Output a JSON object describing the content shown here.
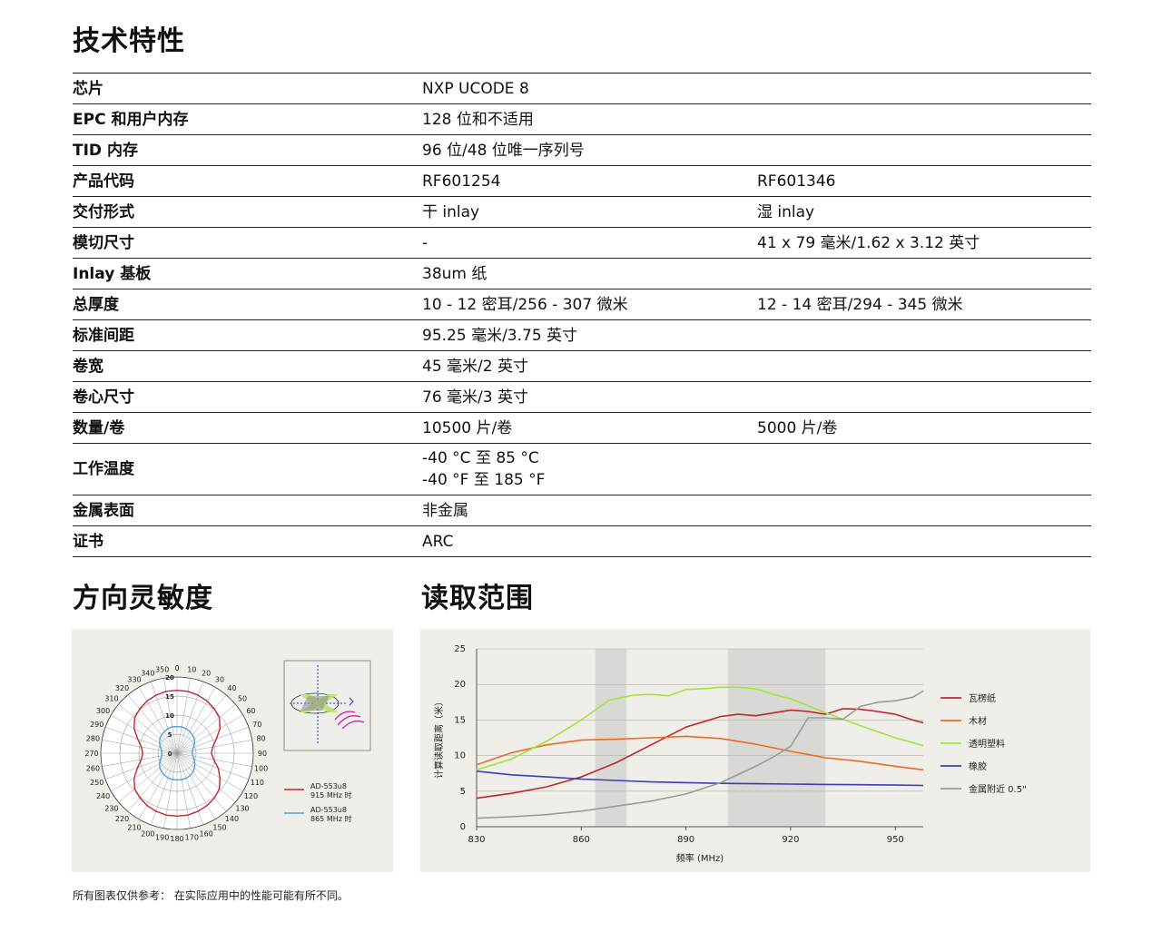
{
  "spec": {
    "title": "技术特性",
    "rows": [
      {
        "label": "芯片",
        "v1": "NXP UCODE 8",
        "v2": ""
      },
      {
        "label": "EPC 和用户内存",
        "v1": "128 位和不适用",
        "v2": ""
      },
      {
        "label": "TID 内存",
        "v1": "96 位/48 位唯一序列号",
        "v2": ""
      },
      {
        "label": "产品代码",
        "v1": "RF601254",
        "v2": "RF601346"
      },
      {
        "label": "交付形式",
        "v1": "干 inlay",
        "v2": "湿 inlay"
      },
      {
        "label": "模切尺寸",
        "v1": "-",
        "v2": "41 x 79 毫米/1.62 x 3.12 英寸"
      },
      {
        "label": "Inlay 基板",
        "v1": "38um 纸",
        "v2": ""
      },
      {
        "label": "总厚度",
        "v1": "10 - 12 密耳/256 - 307 微米",
        "v2": "12 - 14 密耳/294 - 345 微米"
      },
      {
        "label": "标准间距",
        "v1": "95.25 毫米/3.75 英寸",
        "v2": ""
      },
      {
        "label": "卷宽",
        "v1": "45 毫米/2 英寸",
        "v2": ""
      },
      {
        "label": "卷心尺寸",
        "v1": "76 毫米/3 英寸",
        "v2": ""
      },
      {
        "label": "数量/卷",
        "v1": "10500 片/卷",
        "v2": "5000 片/卷"
      },
      {
        "label": "工作温度",
        "v1": "-40 °C 至 85 °C\n-40 °F 至 185 °F",
        "v2": ""
      },
      {
        "label": "金属表面",
        "v1": "非金属",
        "v2": ""
      },
      {
        "label": "证书",
        "v1": "ARC",
        "v2": ""
      }
    ]
  },
  "polar": {
    "title": "方向灵敏度"
  },
  "range": {
    "title": "读取范围"
  },
  "footnote": "所有图表仅供参考： 在实际应用中的性能可能有所不同。",
  "chart_data": [
    {
      "type": "polar",
      "angle_labels": [
        "0",
        "10",
        "20",
        "30",
        "40",
        "50",
        "60",
        "70",
        "80",
        "90",
        "100",
        "110",
        "120",
        "130",
        "140",
        "150",
        "160",
        "170",
        "180",
        "190",
        "200",
        "210",
        "220",
        "230",
        "240",
        "250",
        "260",
        "270",
        "280",
        "290",
        "300",
        "310",
        "320",
        "330",
        "340",
        "350"
      ],
      "radial_ticks": [
        0,
        5,
        10,
        15,
        20
      ],
      "rlim": [
        0,
        20
      ],
      "series": [
        {
          "name": "AD-553u8\n915 MHz 时",
          "color": "#c0272d",
          "angles": [
            0,
            10,
            20,
            30,
            40,
            50,
            60,
            70,
            80,
            90,
            100,
            110,
            120,
            130,
            140,
            150,
            160,
            170,
            180,
            190,
            200,
            210,
            220,
            230,
            240,
            250,
            260,
            270,
            280,
            290,
            300,
            310,
            320,
            330,
            340,
            350
          ],
          "values": [
            16.5,
            16.5,
            16.2,
            15.8,
            15.2,
            14.5,
            13.0,
            11.0,
            9.5,
            9.0,
            9.8,
            11.5,
            13.0,
            14.5,
            15.3,
            15.8,
            16.2,
            16.5,
            16.5,
            16.5,
            16.2,
            15.8,
            15.2,
            14.5,
            13.0,
            11.0,
            9.5,
            9.0,
            9.5,
            11.0,
            13.0,
            14.5,
            15.2,
            15.8,
            16.2,
            16.5
          ]
        },
        {
          "name": "AD-553u8\n865 MHz 时",
          "color": "#4aa3e0",
          "angles": [
            0,
            10,
            20,
            30,
            40,
            50,
            60,
            70,
            80,
            90,
            100,
            110,
            120,
            130,
            140,
            150,
            160,
            170,
            180,
            190,
            200,
            210,
            220,
            230,
            240,
            250,
            260,
            270,
            280,
            290,
            300,
            310,
            320,
            330,
            340,
            350
          ],
          "values": [
            7.0,
            7.0,
            6.9,
            6.6,
            6.3,
            5.9,
            5.3,
            4.6,
            4.1,
            4.0,
            4.2,
            4.8,
            5.4,
            6.0,
            6.5,
            6.8,
            7.0,
            7.0,
            7.0,
            7.0,
            6.9,
            6.6,
            6.3,
            5.9,
            5.3,
            4.6,
            4.1,
            4.0,
            4.1,
            4.6,
            5.3,
            5.9,
            6.3,
            6.6,
            6.9,
            7.0
          ]
        }
      ]
    },
    {
      "type": "line",
      "xlabel": "频率 (MHz)",
      "ylabel": "计算读取距离（米）",
      "xlim": [
        830,
        958
      ],
      "ylim": [
        0,
        25
      ],
      "xticks": [
        830,
        860,
        890,
        920,
        950
      ],
      "yticks": [
        0,
        5,
        10,
        15,
        20,
        25
      ],
      "bands": [
        [
          864,
          873
        ],
        [
          902,
          930
        ]
      ],
      "series": [
        {
          "name": "瓦楞纸",
          "color": "#c0272d",
          "x": [
            830,
            840,
            850,
            860,
            870,
            880,
            890,
            900,
            905,
            910,
            915,
            920,
            925,
            930,
            935,
            940,
            945,
            950,
            955,
            958
          ],
          "y": [
            4,
            4.7,
            5.6,
            7,
            9,
            11.5,
            14,
            15.5,
            15.8,
            15.6,
            16,
            16.4,
            16.2,
            15.8,
            16.6,
            16.5,
            16.2,
            15.8,
            15,
            14.6
          ]
        },
        {
          "name": "木材",
          "color": "#ee6a24",
          "x": [
            830,
            840,
            850,
            860,
            870,
            880,
            890,
            900,
            910,
            920,
            930,
            940,
            950,
            958
          ],
          "y": [
            8.7,
            10.4,
            11.5,
            12.2,
            12.3,
            12.5,
            12.7,
            12.4,
            11.6,
            10.6,
            9.7,
            9.2,
            8.5,
            8
          ]
        },
        {
          "name": "透明塑料",
          "color": "#9ee637",
          "x": [
            830,
            840,
            850,
            860,
            868,
            875,
            880,
            885,
            890,
            895,
            900,
            905,
            910,
            915,
            920,
            925,
            930,
            940,
            950,
            958
          ],
          "y": [
            8,
            9.5,
            12,
            15,
            17.8,
            18.5,
            18.6,
            18.4,
            19.3,
            19.4,
            19.6,
            19.6,
            19.4,
            18.6,
            18,
            17,
            16,
            14.2,
            12.5,
            11.4
          ]
        },
        {
          "name": "橡胶",
          "color": "#3e3bbd",
          "x": [
            830,
            840,
            850,
            860,
            870,
            880,
            890,
            900,
            910,
            920,
            930,
            940,
            950,
            958
          ],
          "y": [
            7.8,
            7.3,
            7,
            6.7,
            6.5,
            6.3,
            6.2,
            6.1,
            6.05,
            6,
            5.95,
            5.9,
            5.85,
            5.8
          ]
        },
        {
          "name": "金属附近 0.5\"",
          "color": "#9a9a9a",
          "x": [
            830,
            840,
            850,
            860,
            870,
            880,
            890,
            900,
            910,
            915,
            920,
            925,
            930,
            935,
            940,
            945,
            950,
            955,
            958
          ],
          "y": [
            1.2,
            1.4,
            1.7,
            2.2,
            2.9,
            3.6,
            4.6,
            6.2,
            8.5,
            9.8,
            11.3,
            15.3,
            15.3,
            15.1,
            16.9,
            17.5,
            17.7,
            18.2,
            19.1
          ]
        }
      ]
    }
  ]
}
